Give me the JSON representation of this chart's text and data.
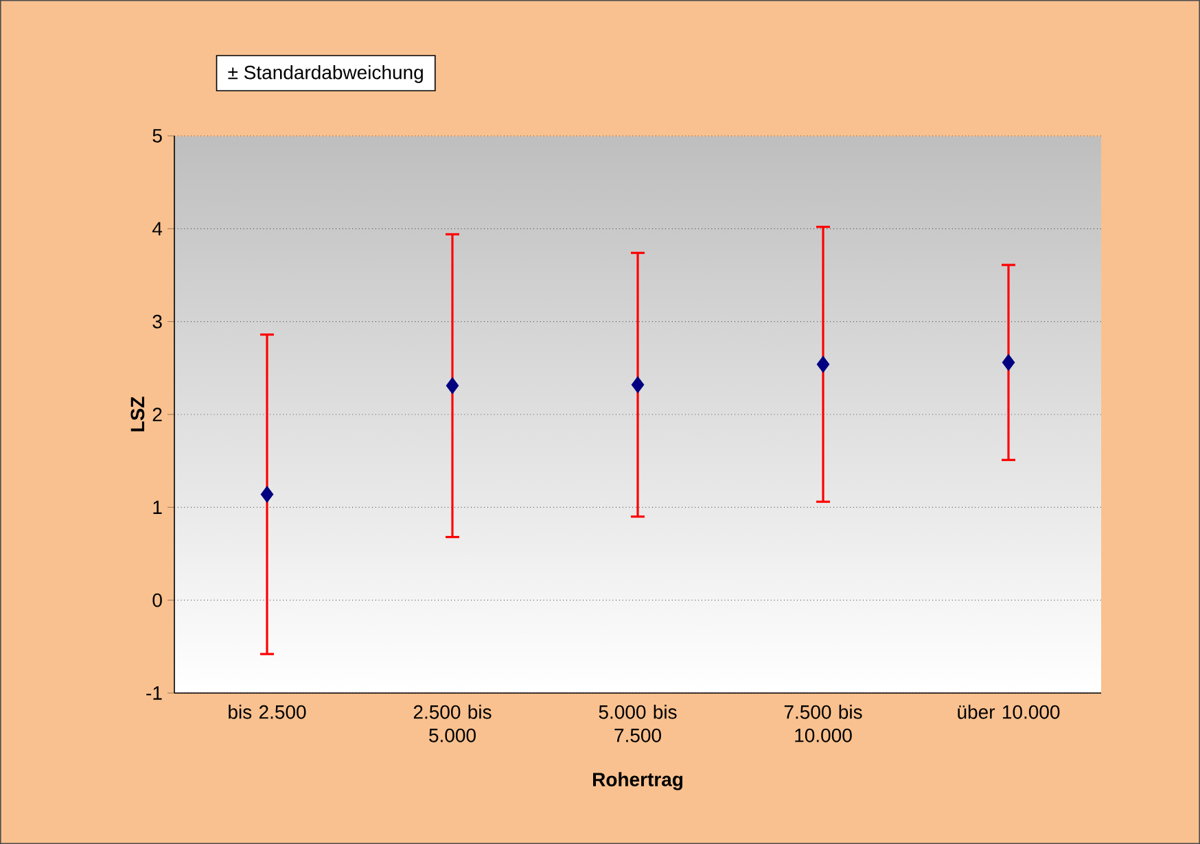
{
  "chart_data": {
    "type": "scatter",
    "xlabel": "Rohertrag",
    "ylabel": "LSZ",
    "categories": [
      "bis 2.500",
      "2.500 bis 5.000",
      "5.000 bis 7.500",
      "7.500 bis 10.000",
      "über 10.000"
    ],
    "series": [
      {
        "name": "± Standardabweichung",
        "color": "#000080",
        "values": [
          1.14,
          2.31,
          2.32,
          2.54,
          2.56
        ],
        "errors": [
          1.72,
          1.63,
          1.42,
          1.48,
          1.05
        ]
      }
    ],
    "ylim": [
      -1,
      5
    ],
    "yticks": [
      -1,
      0,
      1,
      2,
      3,
      4,
      5
    ],
    "grid": "y",
    "legend": "top left",
    "marker": "diamond"
  }
}
